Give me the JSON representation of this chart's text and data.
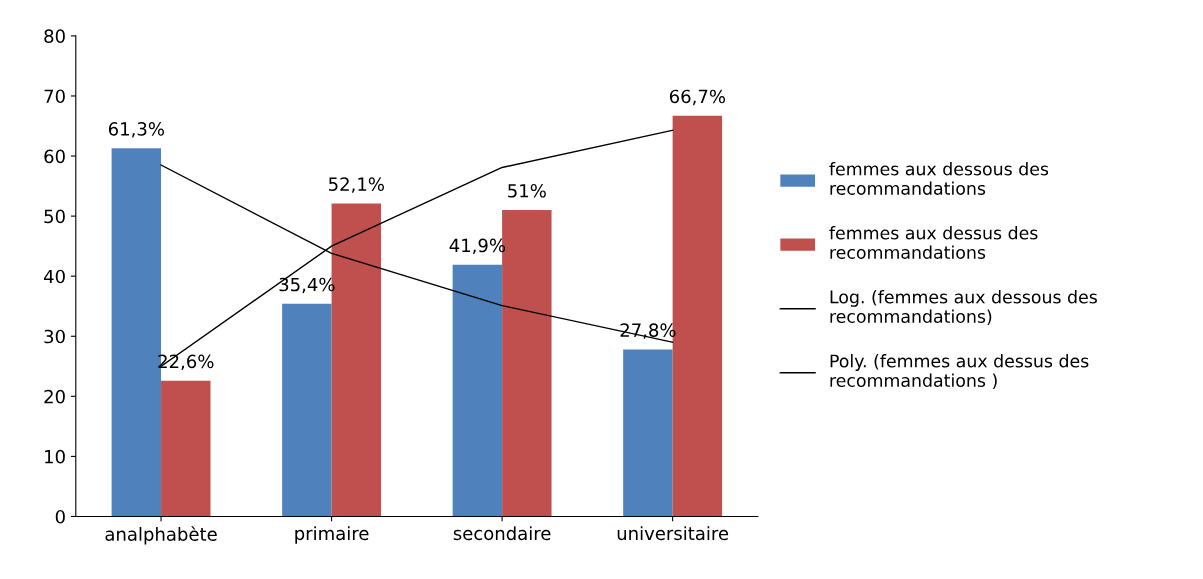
{
  "chart_data": {
    "type": "bar",
    "categories": [
      "analphabète",
      "primaire",
      "secondaire",
      "universitaire"
    ],
    "series": [
      {
        "name": "femmes aux dessous des recommandations",
        "color": "#4f81bd",
        "values": [
          61.3,
          35.4,
          41.9,
          27.8
        ],
        "value_labels": [
          "61,3%",
          "35,4%",
          "41,9%",
          "27,8%"
        ]
      },
      {
        "name": "femmes aux dessus des recommandations",
        "color": "#c0504d",
        "values": [
          22.6,
          52.1,
          51,
          66.7
        ],
        "value_labels": [
          "22,6%",
          "52,1%",
          "51%",
          "66,7%"
        ]
      },
      {
        "name": "Log. (femmes aux dessous des recommandations)",
        "type": "line",
        "color": "#000000",
        "values": [
          58.5,
          43.8,
          35.1,
          29.0
        ]
      },
      {
        "name": "Poly. (femmes aux dessus des recommandations )",
        "type": "line",
        "color": "#000000",
        "values": [
          25.0,
          45.0,
          58.1,
          64.3
        ]
      }
    ],
    "ylim": [
      0,
      80
    ],
    "yticks": [
      0,
      10,
      20,
      30,
      40,
      50,
      60,
      70,
      80
    ],
    "grid": false,
    "legend": "right"
  }
}
